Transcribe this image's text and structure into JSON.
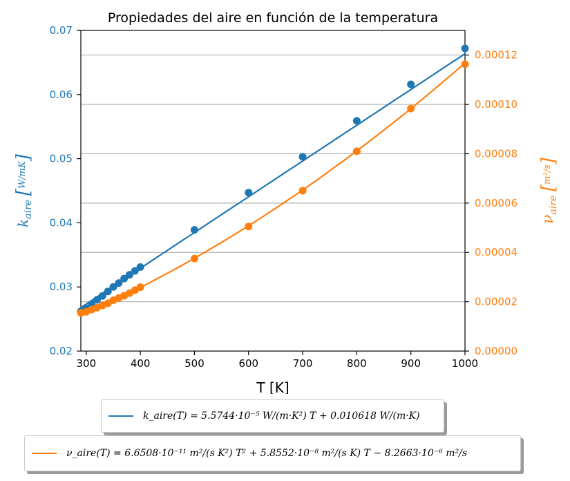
{
  "chart_data": {
    "type": "scatter",
    "title": "Propiedades del aire en función de la temperatura",
    "xlabel": "T [K]",
    "ylabel_left": "k_aire [W/(m K)]",
    "ylabel_right": "ν_aire [m²/s]",
    "xlim": [
      290,
      1000
    ],
    "ylim_left": [
      0.02,
      0.07
    ],
    "ylim_right": [
      0.0,
      0.00013
    ],
    "x_ticks": [
      "300",
      "400",
      "500",
      "600",
      "700",
      "800",
      "900",
      "1000"
    ],
    "y_left_ticks": [
      "0.02",
      "0.03",
      "0.04",
      "0.05",
      "0.06",
      "0.07"
    ],
    "y_right_ticks": [
      "0.00000",
      "0.00002",
      "0.00004",
      "0.00006",
      "0.00008",
      "0.00010",
      "0.00012"
    ],
    "grid": "horizontal (right axis)",
    "legend_placement": "below plot",
    "colors": {
      "k": "#1f77b4",
      "nu": "#ff7f0e"
    },
    "series": [
      {
        "name": "k_aire",
        "axis": "left",
        "x": [
          290,
          300,
          310,
          320,
          330,
          340,
          350,
          360,
          370,
          380,
          390,
          400,
          500,
          600,
          700,
          800,
          900,
          1000
        ],
        "values": [
          0.0262,
          0.0267,
          0.0273,
          0.028,
          0.0286,
          0.0293,
          0.03,
          0.0306,
          0.0313,
          0.0319,
          0.0325,
          0.0331,
          0.0389,
          0.0447,
          0.0503,
          0.0559,
          0.0616,
          0.0672
        ]
      },
      {
        "name": "ν_aire",
        "axis": "right",
        "x": [
          290,
          300,
          310,
          320,
          330,
          340,
          350,
          360,
          370,
          380,
          390,
          400,
          500,
          600,
          700,
          800,
          900,
          1000
        ],
        "values": [
          1.55e-05,
          1.59e-05,
          1.68e-05,
          1.76e-05,
          1.85e-05,
          1.94e-05,
          2.06e-05,
          2.15e-05,
          2.24e-05,
          2.35e-05,
          2.47e-05,
          2.59e-05,
          3.75e-05,
          5.05e-05,
          6.5e-05,
          8.1e-05,
          9.83e-05,
          0.0001163
        ]
      }
    ],
    "fits": [
      {
        "name": "k_fit",
        "coefficients": [
          5.5744e-05,
          0.010618
        ]
      },
      {
        "name": "nu_fit",
        "coefficients": [
          6.6508e-11,
          5.8552e-08,
          -8.2663e-06
        ]
      }
    ]
  },
  "legend": {
    "k_label": "k_aire(T) = 5.5744·10⁻⁵ W/(m·K²) T + 0.010618 W/(m·K)",
    "nu_label": "ν_aire(T) = 6.6508·10⁻¹¹ m²/(s K²) T² + 5.8552·10⁻⁸ m²/(s K) T − 8.2663·10⁻⁶ m²/s"
  }
}
